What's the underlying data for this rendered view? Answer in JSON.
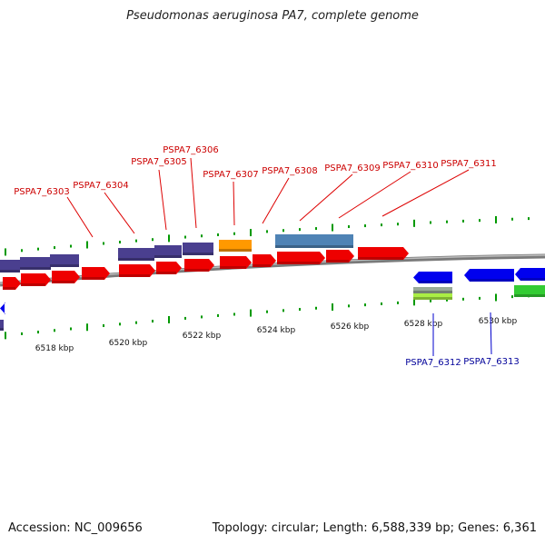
{
  "title": "Pseudomonas aeruginosa PA7, complete genome",
  "footer": {
    "accession_label": "Accession:",
    "accession": "NC_009656",
    "topology_label": "Topology:",
    "topology": "circular",
    "length_label": "Length:",
    "length": "6,588,339 bp",
    "genes_label": "Genes:",
    "genes": "6,361"
  },
  "colors": {
    "forward_cds": "#ee0000",
    "purple_feature": "#4a3f8f",
    "orange_feature": "#ff9900",
    "steelblue_feature": "#4f83b5",
    "reverse_cds": "#0000ee",
    "green_feature": "#33cc33",
    "lightgreen_feature": "#aaee44",
    "gray_feature": "#99aa99",
    "backbone": "#888888",
    "tick": "#009900",
    "label_forward": "#cc0000",
    "label_reverse": "#000099"
  },
  "scale": {
    "unit": "kbp",
    "labels": [
      "6518 kbp",
      "6520 kbp",
      "6522 kbp",
      "6524 kbp",
      "6526 kbp",
      "6528 kbp",
      "6530 kbp"
    ]
  },
  "gene_labels": {
    "forward": [
      "PSPA7_6303",
      "PSPA7_6304",
      "PSPA7_6305",
      "PSPA7_6306",
      "PSPA7_6307",
      "PSPA7_6308",
      "PSPA7_6309",
      "PSPA7_6310",
      "PSPA7_6311"
    ],
    "reverse": [
      "PSPA7_6312",
      "PSPA7_6313"
    ]
  }
}
